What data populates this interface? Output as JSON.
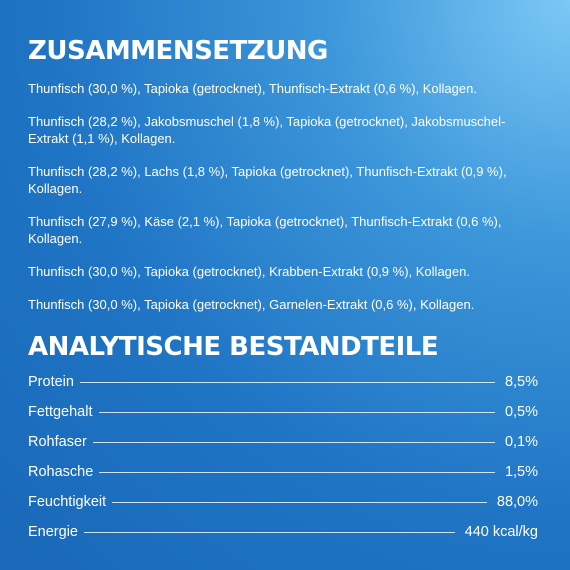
{
  "composition": {
    "title": "ZUSAMMENSETZUNG",
    "items": [
      "Thunfisch (30,0 %), Tapioka (getrocknet), Thunfisch-Extrakt (0,6 %), Kollagen.",
      "Thunfisch (28,2 %), Jakobsmuschel (1,8 %), Tapioka (getrocknet), Jakobsmuschel-Extrakt (1,1 %), Kollagen.",
      "Thunfisch (28,2 %), Lachs (1,8 %), Tapioka (getrocknet), Thunfisch-Extrakt (0,9 %), Kollagen.",
      "Thunfisch (27,9 %), Käse (2,1 %), Tapioka (getrocknet), Thunfisch-Extrakt (0,6 %), Kollagen.",
      "Thunfisch (30,0 %), Tapioka (getrocknet), Krabben-Extrakt (0,9 %), Kollagen.",
      "Thunfisch (30,0 %), Tapioka (getrocknet), Garnelen-Extrakt (0,6 %), Kollagen."
    ]
  },
  "analysis": {
    "title": "ANALYTISCHE BESTANDTEILE",
    "rows": [
      [
        "Protein",
        "8,5%"
      ],
      [
        "Fettgehalt",
        "0,5%"
      ],
      [
        "Rohfaser",
        "0,1%"
      ],
      [
        "Rohasche",
        "1,5%"
      ],
      [
        "Feuchtigkeit",
        "88,0%"
      ],
      [
        "Energie",
        "440 kcal/kg"
      ]
    ]
  }
}
